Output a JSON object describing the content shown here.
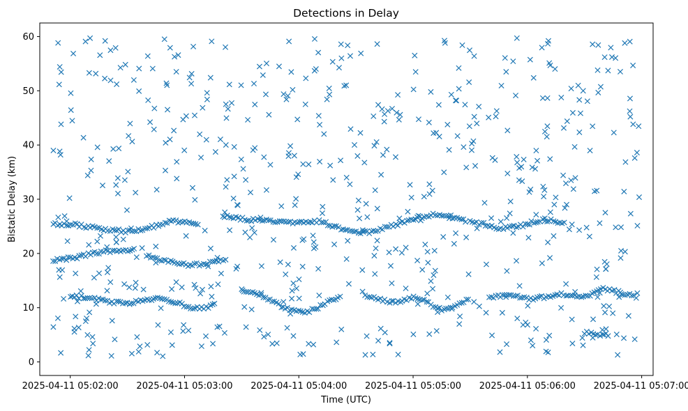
{
  "chart_data": {
    "type": "scatter",
    "title": "Detections in Delay",
    "xlabel": "Time (UTC)",
    "ylabel": "Bistatic Delay (km)",
    "x_axis_kind": "time",
    "x_start": "2025-04-11 05:01:51",
    "x_end": "2025-04-11 05:06:59",
    "xlim": [
      "2025-04-11 05:01:44",
      "2025-04-11 05:07:06"
    ],
    "ylim": [
      -2.5,
      62.5
    ],
    "xticks": [
      {
        "value": "2025-04-11 05:02:00",
        "label": "2025-04-11 05:02:00"
      },
      {
        "value": "2025-04-11 05:03:00",
        "label": "2025-04-11 05:03:00"
      },
      {
        "value": "2025-04-11 05:04:00",
        "label": "2025-04-11 05:04:00"
      },
      {
        "value": "2025-04-11 05:05:00",
        "label": "2025-04-11 05:05:00"
      },
      {
        "value": "2025-04-11 05:06:00",
        "label": "2025-04-11 05:06:00"
      },
      {
        "value": "2025-04-11 05:07:00",
        "label": "2025-04-11 05:07:00"
      }
    ],
    "yticks": [
      0,
      10,
      20,
      30,
      40,
      50,
      60
    ],
    "grid": false,
    "marker": "x",
    "color": "#1f77b4",
    "series": [
      {
        "tracks": [
          {
            "start": "2025-04-11 05:01:51",
            "end": "2025-04-11 05:03:08",
            "y": [
              25.5,
              25.4,
              25.3,
              25.0,
              24.7,
              24.4,
              24.2,
              24.1,
              24.2,
              24.6,
              25.2,
              25.8,
              25.9,
              25.7,
              25.4
            ]
          },
          {
            "start": "2025-04-11 05:03:20",
            "end": "2025-04-11 05:05:28",
            "y": [
              26.8,
              26.6,
              26.3,
              26.1,
              26.0,
              25.9,
              25.7,
              25.6,
              25.8,
              26.0,
              25.4,
              24.6,
              24.0,
              23.8,
              24.0,
              24.6,
              25.2,
              25.6,
              26.2,
              26.9,
              27.2,
              27.0,
              26.5,
              26.0
            ]
          },
          {
            "start": "2025-04-11 05:05:30",
            "end": "2025-04-11 05:06:20",
            "y": [
              25.8,
              25.5,
              25.0,
              24.6,
              24.8,
              25.2,
              25.8,
              26.2,
              26.0,
              25.6
            ]
          },
          {
            "start": "2025-04-11 05:01:51",
            "end": "2025-04-11 05:02:34",
            "y": [
              18.8,
              19.0,
              19.2,
              19.6,
              20.0,
              20.3,
              20.5,
              20.6,
              20.7
            ]
          },
          {
            "start": "2025-04-11 05:02:40",
            "end": "2025-04-11 05:03:22",
            "y": [
              19.8,
              19.2,
              18.7,
              18.3,
              18.0,
              17.9,
              18.0,
              18.2,
              18.6,
              19.2
            ]
          },
          {
            "start": "2025-04-11 05:02:00",
            "end": "2025-04-11 05:03:16",
            "y": [
              12.2,
              12.0,
              11.8,
              11.5,
              11.2,
              11.0,
              10.8,
              11.0,
              11.3,
              11.6,
              11.9,
              11.4,
              10.8,
              10.2,
              9.9,
              10.1,
              10.6
            ]
          },
          {
            "start": "2025-04-11 05:03:30",
            "end": "2025-04-11 05:04:22",
            "y": [
              13.2,
              12.8,
              12.2,
              11.6,
              10.6,
              9.9,
              9.4,
              9.2,
              9.6,
              10.4,
              11.4,
              12.2
            ]
          },
          {
            "start": "2025-04-11 05:04:36",
            "end": "2025-04-11 05:05:30",
            "y": [
              12.0,
              11.8,
              11.4,
              11.0,
              11.2,
              11.6,
              12.0,
              11.6,
              10.6,
              9.8,
              9.6,
              10.2,
              11.0,
              11.8
            ]
          },
          {
            "start": "2025-04-11 05:05:40",
            "end": "2025-04-11 05:06:58",
            "y": [
              12.0,
              12.2,
              12.4,
              12.2,
              11.8,
              11.6,
              12.0,
              12.4,
              12.6,
              12.2,
              11.8,
              12.4,
              13.6,
              13.2,
              12.8,
              12.4,
              12.0
            ]
          },
          {
            "start": "2025-04-11 05:06:30",
            "end": "2025-04-11 05:06:42",
            "y": [
              5.4,
              5.2,
              5.0,
              5.0
            ]
          }
        ],
        "clutter_count": 620,
        "clutter_seed": 20250411
      }
    ]
  }
}
